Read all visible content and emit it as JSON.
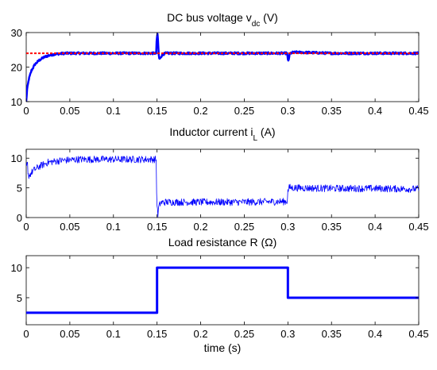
{
  "chart_data": [
    {
      "type": "line",
      "title": "DC bus voltage v",
      "title_subscript": "dc",
      "title_suffix": " (V)",
      "xlim": [
        0,
        0.45
      ],
      "ylim": [
        10,
        30
      ],
      "xticks": [
        "0",
        "0.05",
        "0.1",
        "0.15",
        "0.2",
        "0.25",
        "0.3",
        "0.35",
        "0.4",
        "0.45"
      ],
      "yticks": [
        "10",
        "20",
        "30"
      ],
      "grid": false,
      "series": [
        {
          "color": "#0000ff",
          "line_width": 2.5,
          "noise": 0.3,
          "x": [
            0,
            0.001,
            0.003,
            0.006,
            0.01,
            0.015,
            0.02,
            0.025,
            0.03,
            0.035,
            0.04,
            0.045,
            0.05,
            0.1,
            0.149,
            0.1495,
            0.1505,
            0.151,
            0.1515,
            0.152,
            0.1525,
            0.153,
            0.154,
            0.156,
            0.16,
            0.2,
            0.25,
            0.299,
            0.2995,
            0.3,
            0.3005,
            0.301,
            0.3015,
            0.302,
            0.303,
            0.305,
            0.31,
            0.35,
            0.4,
            0.45
          ],
          "y": [
            10,
            13.5,
            16.5,
            19,
            20.8,
            22.0,
            22.8,
            23.3,
            23.6,
            23.8,
            23.9,
            24.0,
            24.0,
            24.0,
            24.0,
            27.5,
            29.5,
            28.0,
            25.5,
            23.5,
            22.5,
            22.3,
            22.8,
            23.6,
            24.0,
            24.0,
            24.0,
            24.0,
            23.2,
            22.0,
            21.8,
            22.3,
            23.0,
            23.6,
            24.0,
            24.2,
            24.3,
            24.0,
            24.0,
            24.0
          ]
        },
        {
          "color": "#ff0000",
          "dashed": true,
          "line_width": 2,
          "x": [
            0,
            0.45
          ],
          "y": [
            24,
            24
          ]
        }
      ]
    },
    {
      "type": "line",
      "title": "Inductor current i",
      "title_subscript": "L",
      "title_suffix": " (A)",
      "xlim": [
        0,
        0.45
      ],
      "ylim": [
        0,
        11.5
      ],
      "xticks": [
        "0",
        "0.05",
        "0.1",
        "0.15",
        "0.2",
        "0.25",
        "0.3",
        "0.35",
        "0.4",
        "0.45"
      ],
      "yticks": [
        "0",
        "5",
        "10"
      ],
      "grid": false,
      "series": [
        {
          "color": "#0000ff",
          "line_width": 0.8,
          "noise": 0.6,
          "x": [
            0,
            0.0015,
            0.002,
            0.004,
            0.008,
            0.015,
            0.025,
            0.04,
            0.06,
            0.1,
            0.149,
            0.1495,
            0.1505,
            0.151,
            0.152,
            0.154,
            0.16,
            0.2,
            0.25,
            0.299,
            0.2995,
            0.3,
            0.301,
            0.302,
            0.304,
            0.31,
            0.35,
            0.4,
            0.45
          ],
          "y": [
            8.5,
            9.0,
            7.0,
            7.2,
            7.9,
            8.6,
            9.3,
            9.6,
            9.8,
            9.8,
            9.8,
            4.0,
            1.0,
            0.4,
            1.8,
            2.5,
            2.6,
            2.6,
            2.6,
            2.7,
            3.5,
            4.4,
            4.9,
            5.1,
            5.0,
            5.0,
            4.9,
            4.9,
            4.8
          ]
        }
      ]
    },
    {
      "type": "line",
      "title": "Load resistance R (Ω)",
      "xlabel": "time (s)",
      "xlim": [
        0,
        0.45
      ],
      "ylim": [
        0.5,
        12
      ],
      "xticks": [
        "0",
        "0.05",
        "0.1",
        "0.15",
        "0.2",
        "0.25",
        "0.3",
        "0.35",
        "0.4",
        "0.45"
      ],
      "yticks": [
        "5",
        "10"
      ],
      "grid": false,
      "series": [
        {
          "color": "#0000ff",
          "line_width": 3,
          "step": true,
          "x": [
            0,
            0.15,
            0.15,
            0.3,
            0.3,
            0.45
          ],
          "y": [
            2.5,
            2.5,
            10,
            10,
            5,
            5
          ]
        }
      ]
    }
  ]
}
